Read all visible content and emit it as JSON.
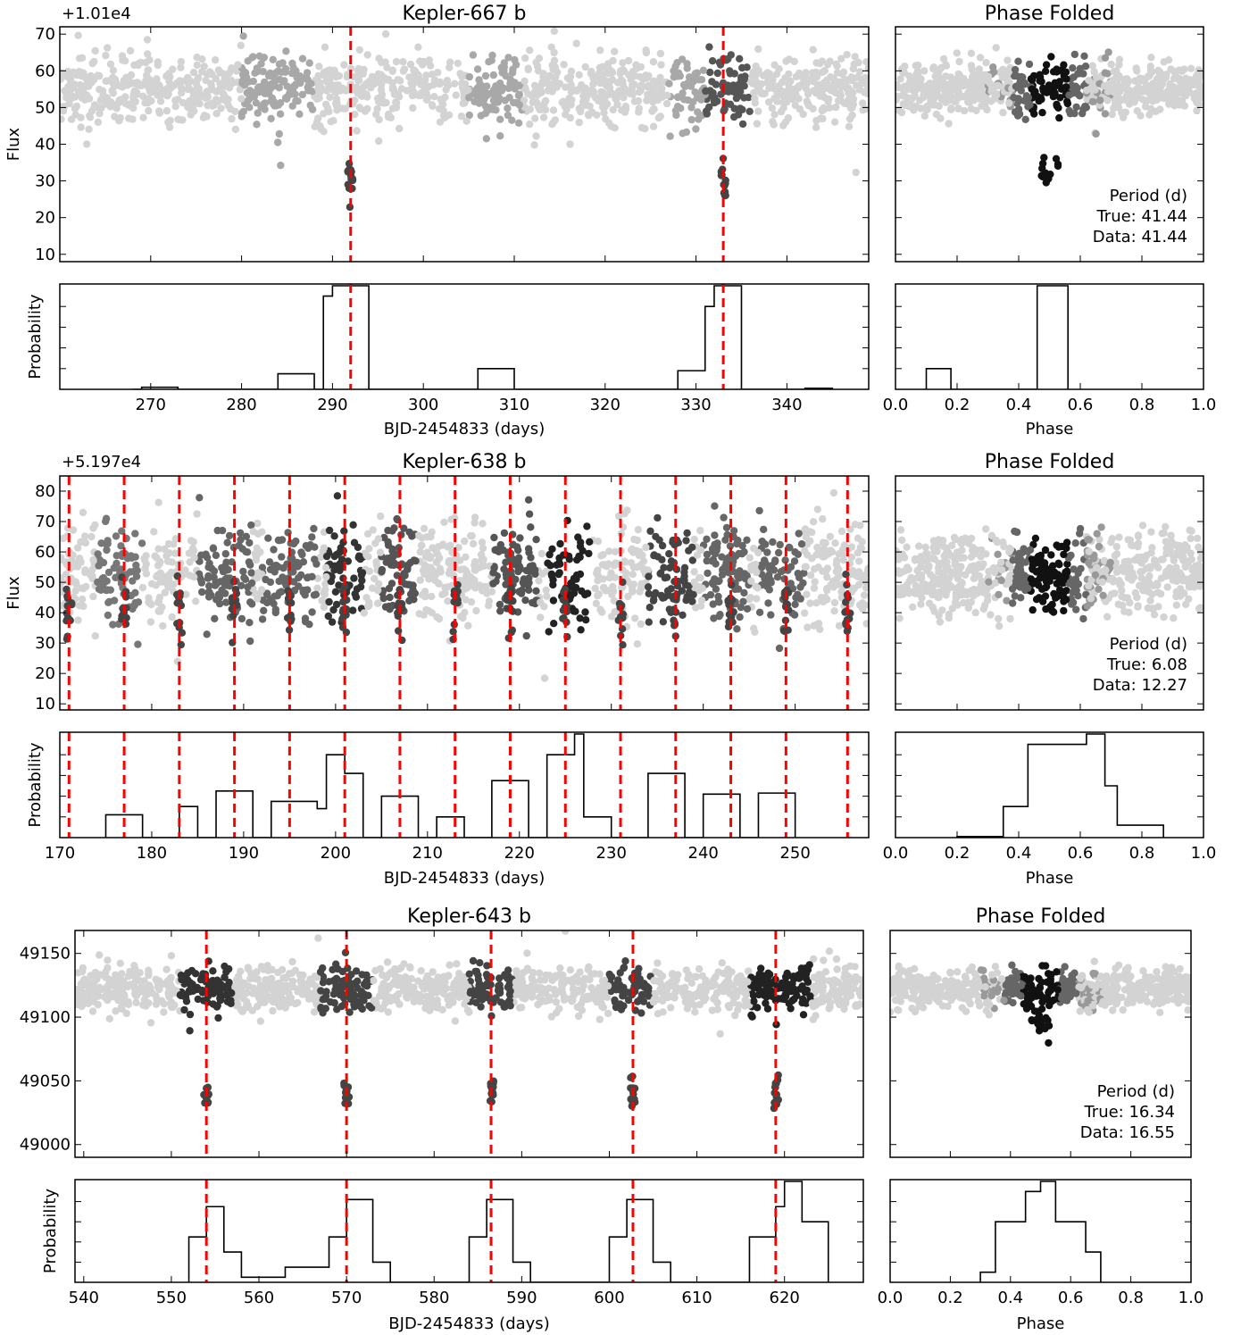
{
  "chart_data": [
    {
      "type": "scatter",
      "title": "Kepler-667 b",
      "offset_text": "+1.01e4",
      "light_curve": {
        "ylabel": "Flux",
        "xlim": [
          260,
          349
        ],
        "ylim": [
          8,
          72
        ],
        "yticks": [
          10,
          20,
          30,
          40,
          50,
          60,
          70
        ],
        "baseline": 55,
        "noise": 4.5,
        "transit_centers": [
          292,
          333
        ],
        "transit_depth": 24,
        "shaded_bands": [
          [
            280,
            288,
            "#a8a8a8"
          ],
          [
            305,
            311,
            "#a8a8a8"
          ],
          [
            327,
            331,
            "#a8a8a8"
          ],
          [
            331,
            336,
            "#555555"
          ]
        ]
      },
      "probability": {
        "ylabel": "Probability",
        "xlabel": "BJD-2454833 (days)",
        "xticks": [
          270,
          280,
          290,
          300,
          310,
          320,
          330,
          340
        ],
        "steps": [
          [
            268,
            0.0
          ],
          [
            269,
            0.02
          ],
          [
            273,
            0.0
          ],
          [
            284,
            0.15
          ],
          [
            288,
            0.0
          ],
          [
            289,
            0.9
          ],
          [
            290,
            1.0
          ],
          [
            294,
            0.0
          ],
          [
            306,
            0.2
          ],
          [
            310,
            0.0
          ],
          [
            328,
            0.18
          ],
          [
            331,
            0.8
          ],
          [
            332,
            1.0
          ],
          [
            335,
            0.0
          ],
          [
            342,
            0.01
          ],
          [
            345,
            0.0
          ]
        ],
        "ylim": [
          0,
          1
        ]
      },
      "phase": {
        "title": "Phase Folded",
        "xlabel": "Phase",
        "xticks": [
          "0.0",
          "0.2",
          "0.4",
          "0.6",
          "0.8",
          "1.0"
        ],
        "dip_depth": 22,
        "period_label": "Period (d)",
        "true_period": "True: 41.44",
        "data_period": "Data: 41.44",
        "prob_steps": [
          [
            0.1,
            0.2
          ],
          [
            0.18,
            0.0
          ],
          [
            0.46,
            1.0
          ],
          [
            0.54,
            1.0
          ],
          [
            0.56,
            0.0
          ]
        ]
      }
    },
    {
      "type": "scatter",
      "title": "Kepler-638 b",
      "offset_text": "+5.197e4",
      "light_curve": {
        "ylabel": "Flux",
        "xlim": [
          170,
          258
        ],
        "ylim": [
          8,
          85
        ],
        "yticks": [
          10,
          20,
          30,
          40,
          50,
          60,
          70,
          80
        ],
        "baseline": 53,
        "noise": 8,
        "transit_centers": [
          171,
          177,
          183,
          189,
          195,
          201,
          207,
          213,
          219,
          225,
          231,
          237,
          243,
          249,
          255.7
        ],
        "transit_depth": 12,
        "shaded_bands": [
          [
            174,
            179,
            "#777777"
          ],
          [
            185,
            191,
            "#666666"
          ],
          [
            192,
            198,
            "#666666"
          ],
          [
            199,
            203,
            "#333333"
          ],
          [
            205,
            209,
            "#555555"
          ],
          [
            217,
            222,
            "#555555"
          ],
          [
            223,
            228,
            "#222222"
          ],
          [
            234,
            239,
            "#444444"
          ],
          [
            240,
            245,
            "#666666"
          ],
          [
            246,
            251,
            "#666666"
          ]
        ]
      },
      "probability": {
        "ylabel": "Probability",
        "xlabel": "BJD-2454833 (days)",
        "xticks": [
          170,
          180,
          190,
          200,
          210,
          220,
          230,
          240,
          250
        ],
        "steps": [
          [
            175,
            0.22
          ],
          [
            179,
            0.0
          ],
          [
            183,
            0.3
          ],
          [
            185,
            0.0
          ],
          [
            187,
            0.45
          ],
          [
            191,
            0.0
          ],
          [
            193,
            0.35
          ],
          [
            198,
            0.28
          ],
          [
            199,
            0.8
          ],
          [
            201,
            0.62
          ],
          [
            203,
            0.0
          ],
          [
            205,
            0.4
          ],
          [
            209,
            0.0
          ],
          [
            211,
            0.2
          ],
          [
            214,
            0.0
          ],
          [
            217,
            0.55
          ],
          [
            221,
            0.0
          ],
          [
            223,
            0.8
          ],
          [
            226,
            1.0
          ],
          [
            227,
            0.2
          ],
          [
            230,
            0.0
          ],
          [
            234,
            0.62
          ],
          [
            238,
            0.0
          ],
          [
            240,
            0.42
          ],
          [
            244,
            0.0
          ],
          [
            246,
            0.43
          ],
          [
            250,
            0.0
          ]
        ],
        "ylim": [
          0,
          1
        ]
      },
      "phase": {
        "title": "Phase Folded",
        "xlabel": "Phase",
        "xticks": [
          "0.0",
          "0.2",
          "0.4",
          "0.6",
          "0.8",
          "1.0"
        ],
        "dip_depth": 6,
        "period_label": "Period (d)",
        "true_period": "True: 6.08",
        "data_period": "Data: 12.27",
        "prob_steps": [
          [
            0.2,
            0.01
          ],
          [
            0.35,
            0.3
          ],
          [
            0.43,
            0.9
          ],
          [
            0.62,
            1.0
          ],
          [
            0.68,
            0.5
          ],
          [
            0.72,
            0.12
          ],
          [
            0.87,
            0.0
          ]
        ]
      }
    },
    {
      "type": "scatter",
      "title": "Kepler-643 b",
      "light_curve": {
        "ylabel": "",
        "xlim": [
          539,
          629
        ],
        "ylim": [
          48990,
          49168
        ],
        "yticks": [
          49000,
          49050,
          49100,
          49150
        ],
        "baseline": 49122,
        "noise": 9,
        "transit_centers": [
          554,
          570,
          586.5,
          602.7,
          619
        ],
        "transit_depth": 80,
        "shaded_bands": [
          [
            551,
            557,
            "#333333"
          ],
          [
            567,
            573,
            "#444444"
          ],
          [
            584,
            589,
            "#444444"
          ],
          [
            600,
            605,
            "#444444"
          ],
          [
            616,
            623,
            "#222222"
          ]
        ]
      },
      "probability": {
        "ylabel": "Probability",
        "xlabel": "BJD-2454833 (days)",
        "xticks": [
          540,
          550,
          560,
          570,
          580,
          590,
          600,
          610,
          620
        ],
        "steps": [
          [
            552,
            0.45
          ],
          [
            554,
            0.75
          ],
          [
            556,
            0.3
          ],
          [
            558,
            0.05
          ],
          [
            563,
            0.15
          ],
          [
            567,
            0.15
          ],
          [
            568,
            0.45
          ],
          [
            570,
            0.82
          ],
          [
            573,
            0.2
          ],
          [
            575,
            0.0
          ],
          [
            584,
            0.45
          ],
          [
            586,
            0.82
          ],
          [
            589,
            0.2
          ],
          [
            591,
            0.0
          ],
          [
            600,
            0.45
          ],
          [
            602,
            0.82
          ],
          [
            605,
            0.2
          ],
          [
            607,
            0.0
          ],
          [
            616,
            0.45
          ],
          [
            619,
            0.75
          ],
          [
            620,
            1.0
          ],
          [
            622,
            0.6
          ],
          [
            625,
            0.0
          ]
        ],
        "ylim": [
          0,
          1
        ]
      },
      "phase": {
        "title": "Phase Folded",
        "xlabel": "Phase",
        "xticks": [
          "0.0",
          "0.2",
          "0.4",
          "0.6",
          "0.8",
          "1.0"
        ],
        "dip_depth": 30,
        "period_label": "Period (d)",
        "true_period": "True: 16.34",
        "data_period": "Data: 16.55",
        "prob_steps": [
          [
            0.3,
            0.1
          ],
          [
            0.35,
            0.6
          ],
          [
            0.45,
            0.9
          ],
          [
            0.5,
            1.0
          ],
          [
            0.55,
            0.6
          ],
          [
            0.65,
            0.3
          ],
          [
            0.7,
            0.0
          ]
        ]
      }
    }
  ]
}
